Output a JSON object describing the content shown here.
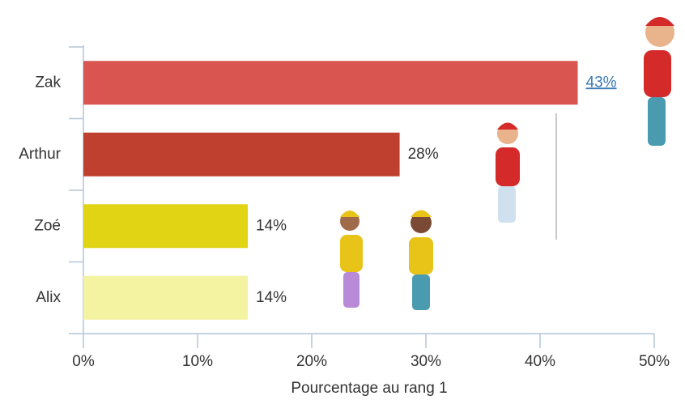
{
  "chart_data": {
    "type": "hbar",
    "categories": [
      "Zak",
      "Arthur",
      "Zoé",
      "Alix"
    ],
    "values": [
      43.3,
      27.7,
      14.4,
      14.4
    ],
    "value_labels": [
      "43%",
      "28%",
      "14%",
      "14%"
    ],
    "colors": [
      "#d95550",
      "#c0402f",
      "#e0d414",
      "#f3f3a2"
    ],
    "xlabel": "Pourcentage au rang 1",
    "xlim": [
      0,
      50
    ],
    "xticks": [
      {
        "value": 0,
        "label": "0%"
      },
      {
        "value": 10,
        "label": "10%"
      },
      {
        "value": 20,
        "label": "20%"
      },
      {
        "value": 30,
        "label": "30%"
      },
      {
        "value": 40,
        "label": "40%"
      },
      {
        "value": 50,
        "label": "50%"
      }
    ]
  }
}
